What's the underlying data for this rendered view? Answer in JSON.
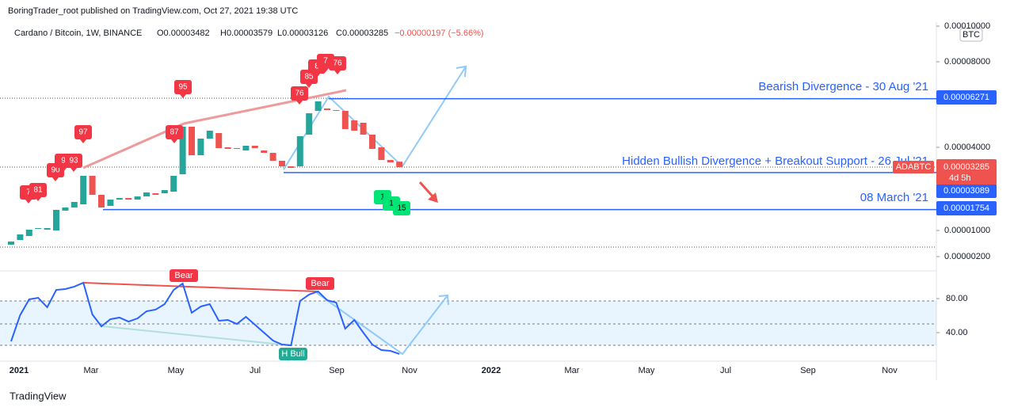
{
  "header": {
    "publisher": "BoringTrader_root published on TradingView.com, Oct 27, 2021 19:38 UTC",
    "symbol": "Cardano / Bitcoin, 1W, BINANCE",
    "o": "O0.00003482",
    "h": "H0.00003579",
    "l": "L0.00003126",
    "c": "C0.00003285",
    "change": "−0.00000197 (−5.66%)",
    "currency": "BTC"
  },
  "chart_data": {
    "type": "candlestick",
    "open": [
      5.64e-06,
      7.09e-06,
      8.3e-06,
      1.057e-05,
      1.029e-05,
      1e-05,
      1.714e-05,
      1.829e-05,
      1.943e-05,
      2.971e-05,
      2.286e-05,
      1.886e-05,
      2.114e-05,
      2.171e-05,
      2.114e-05,
      2.229e-05,
      2.343e-05,
      2.343e-05,
      2.4e-05,
      3.029e-05,
      4.963e-05,
      3.714e-05,
      4.407e-05,
      4.667e-05,
      4e-05,
      3.971e-05,
      3.886e-05,
      4.074e-05,
      3.886e-05,
      3.8e-05,
      3.514e-05,
      3.314e-05,
      3.314e-05,
      4.593e-05,
      5.704e-05,
      5.815e-05,
      5.741e-05,
      5.704e-05,
      5.26e-05,
      5.148e-05,
      4.593e-05,
      4e-05,
      3.543e-05,
      3.482e-05
    ],
    "close": [
      6.61e-06,
      8.79e-06,
      1.029e-05,
      1.086e-05,
      1.086e-05,
      1.743e-05,
      1.829e-05,
      2.029e-05,
      2.971e-05,
      2.286e-05,
      1.829e-05,
      2.114e-05,
      2.171e-05,
      2.114e-05,
      2.229e-05,
      2.371e-05,
      2.286e-05,
      2.457e-05,
      2.971e-05,
      4.963e-05,
      3.714e-05,
      4.407e-05,
      4.778e-05,
      3.971e-05,
      3.943e-05,
      3.943e-05,
      4.074e-05,
      3.971e-05,
      3.8e-05,
      3.514e-05,
      3.314e-05,
      3.257e-05,
      4.519e-05,
      5.593e-05,
      6.148e-05,
      5.741e-05,
      5.704e-05,
      4.852e-05,
      4.778e-05,
      4.593e-05,
      3.943e-05,
      3.543e-05,
      3.457e-05,
      3.285e-05
    ],
    "up_color": "#26a69a",
    "down_color": "#ef5350",
    "yticks": [
      {
        "value": 0.0001,
        "label": "0.00010000"
      },
      {
        "value": 8e-05,
        "label": "0.00008000"
      },
      {
        "value": 4e-05,
        "label": "0.00004000"
      },
      {
        "value": 1e-05,
        "label": "0.00001000"
      },
      {
        "value": 2e-06,
        "label": "0.00000200"
      }
    ],
    "levels": [
      {
        "value": 6.271e-05,
        "label": "0.00006271",
        "text": "Bearish Divergence - 30 Aug '21"
      },
      {
        "value": 3.089e-05,
        "label": "0.00003089",
        "text": "Hidden Bullish Divergence + Breakout Support - 26 Jul '21"
      },
      {
        "value": 1.754e-05,
        "label": "0.00001754",
        "text": "08 March '21"
      }
    ],
    "last": {
      "value": 3.285e-05,
      "label": "0.00003285",
      "symbol": "ADABTC",
      "countdown": "4d 5h"
    },
    "signals_sell": [
      "7",
      "81",
      "90",
      "9",
      "93",
      "97",
      "87",
      "95",
      "76",
      "85",
      "8",
      "7",
      "76"
    ],
    "signals_buy": [
      "1",
      "1",
      "15"
    ],
    "xticks": [
      "2021",
      "Mar",
      "May",
      "Jul",
      "Sep",
      "Nov",
      "2022",
      "Mar",
      "May",
      "Jul",
      "Sep",
      "Nov"
    ],
    "oscillator": {
      "values": [
        29.8,
        60.5,
        79.1,
        80.9,
        69.8,
        90.2,
        91.2,
        94.0,
        98.6,
        61.4,
        47.4,
        55.8,
        57.7,
        53.0,
        56.7,
        65.1,
        67.0,
        73.5,
        90.2,
        97.7,
        63.3,
        70.7,
        73.5,
        54.0,
        54.9,
        50.2,
        58.6,
        49.3,
        40.0,
        30.7,
        26.0,
        25.1,
        77.2,
        84.7,
        88.4,
        78.1,
        75.3,
        44.7,
        54.9,
        40.0,
        26.0,
        19.5,
        18.6,
        14.9
      ],
      "color": "#2962ff",
      "yticks": [
        {
          "value": 80,
          "label": "80.00"
        },
        {
          "value": 40,
          "label": "40.00"
        }
      ],
      "labels": [
        "Bear",
        "Bear",
        "H Bull"
      ]
    }
  },
  "footer": {
    "brand": "TradingView"
  }
}
